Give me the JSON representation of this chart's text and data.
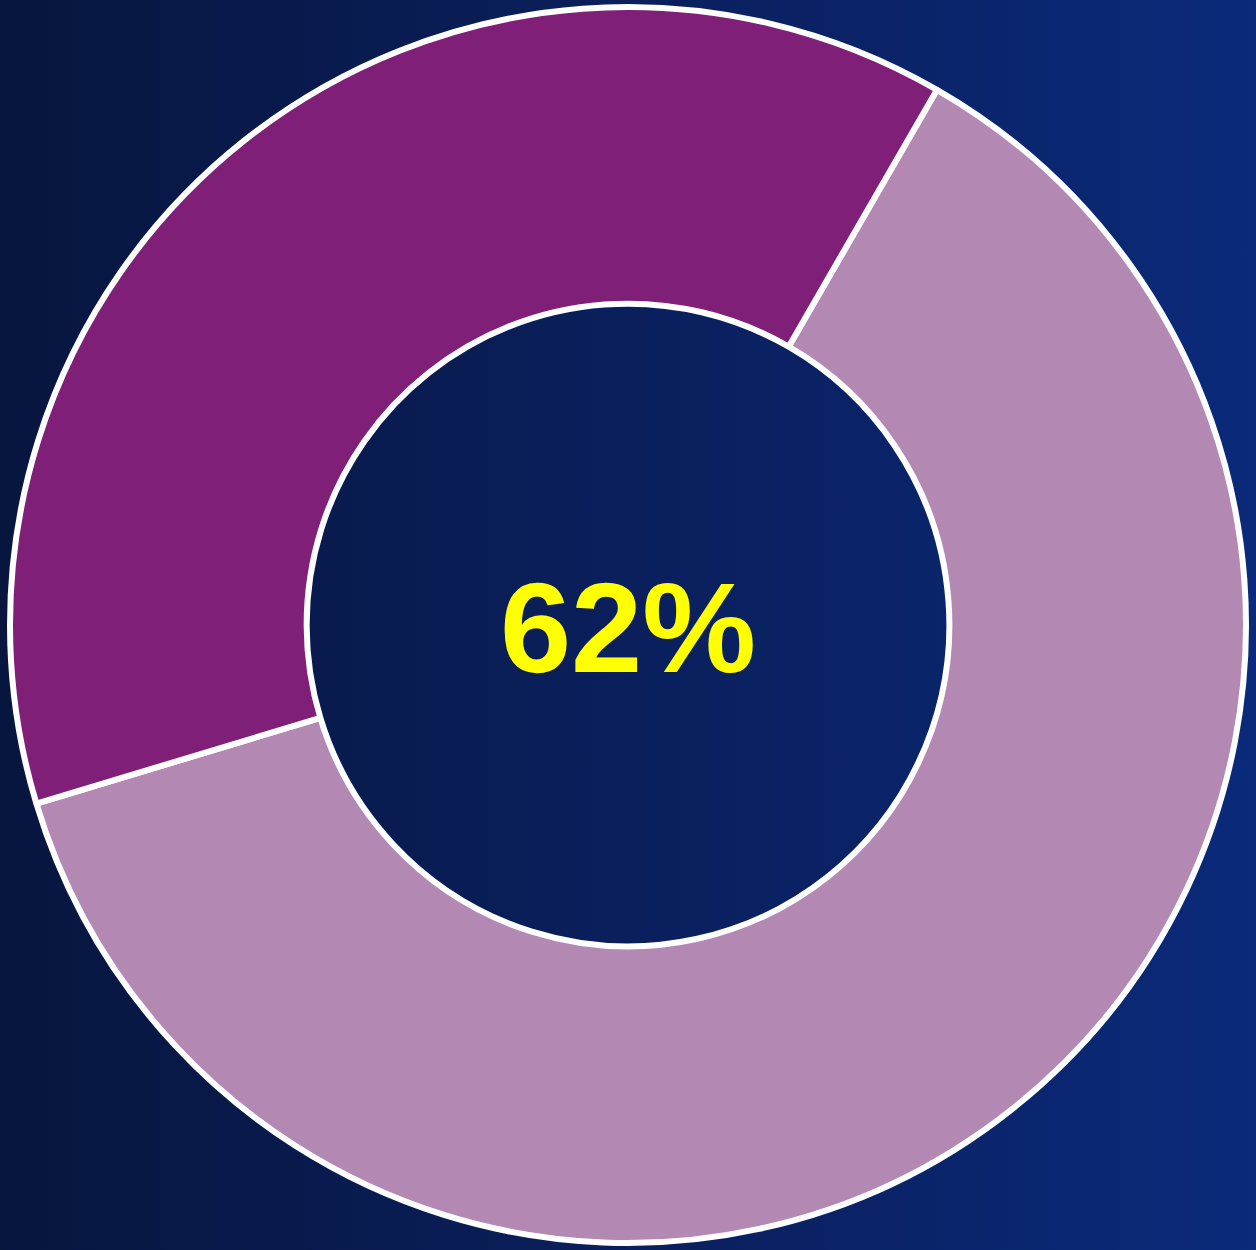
{
  "chart_data": {
    "type": "donut",
    "categories": [
      null,
      null
    ],
    "values": [
      62,
      38
    ],
    "colors": [
      "#b388b2",
      "#7f1f78"
    ],
    "annotations": [
      "62%"
    ]
  }
}
